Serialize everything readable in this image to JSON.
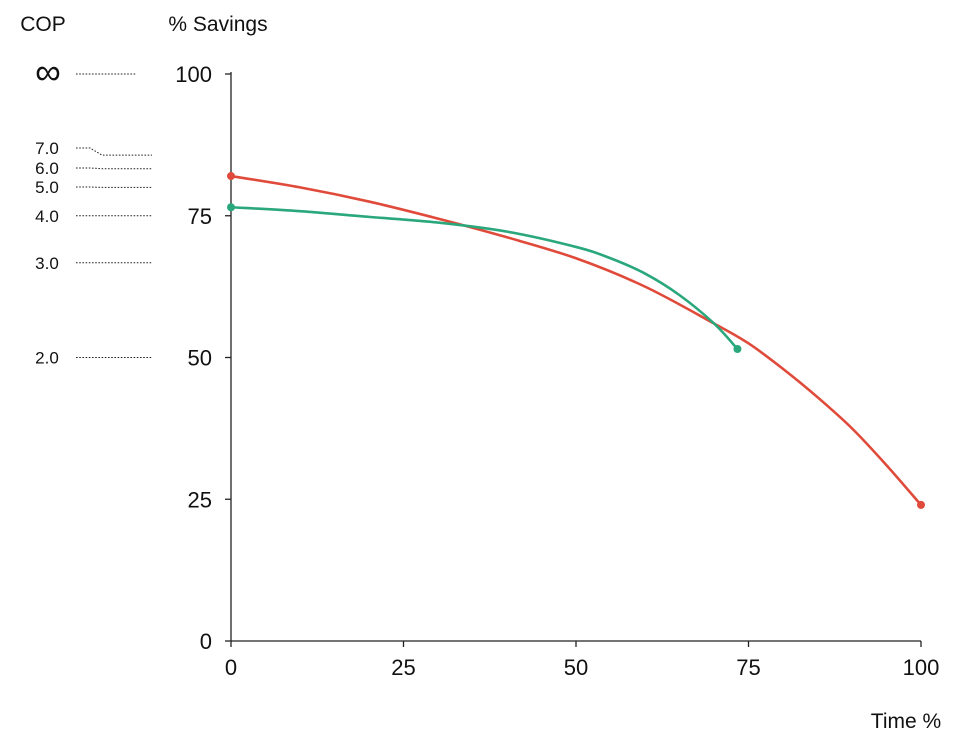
{
  "chart_data": {
    "type": "line",
    "title": "",
    "xlabel": "Time %",
    "ylabel": "% Savings",
    "secondary_axis_label": "COP",
    "xlim": [
      0,
      100
    ],
    "ylim": [
      0,
      100
    ],
    "x_ticks": [
      "0",
      "25",
      "50",
      "75",
      "100"
    ],
    "y_ticks": [
      "0",
      "25",
      "50",
      "75",
      "100"
    ],
    "cop_scale": [
      {
        "label": "∞",
        "savings": 100
      },
      {
        "label": "7.0",
        "savings": 85.7
      },
      {
        "label": "6.0",
        "savings": 83.3
      },
      {
        "label": "5.0",
        "savings": 80
      },
      {
        "label": "4.0",
        "savings": 75
      },
      {
        "label": "3.0",
        "savings": 66.7
      },
      {
        "label": "2.0",
        "savings": 50
      }
    ],
    "series": [
      {
        "color": "#e04a3a",
        "x": [
          0,
          10,
          20,
          30,
          40,
          50,
          60,
          70,
          75,
          80,
          85,
          90,
          95,
          100
        ],
        "y": [
          82,
          80,
          77.5,
          74.5,
          71.2,
          67.5,
          62.5,
          56,
          52.5,
          48,
          43,
          37.5,
          31,
          24
        ]
      },
      {
        "color": "#2aa87c",
        "x": [
          0,
          10,
          20,
          30,
          40,
          50,
          55,
          60,
          65,
          70,
          73.4
        ],
        "y": [
          76.5,
          75.8,
          74.8,
          73.8,
          72.2,
          69.5,
          67.5,
          64.8,
          61,
          56,
          51.5
        ]
      }
    ]
  }
}
